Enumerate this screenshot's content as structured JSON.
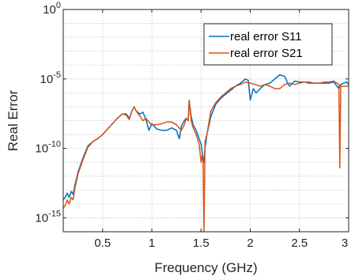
{
  "chart_data": {
    "type": "line",
    "title": "",
    "xlabel": "Frequency (GHz)",
    "ylabel": "Real Error",
    "xlim": [
      0.1,
      3.0
    ],
    "ylim": [
      1e-16,
      1
    ],
    "yscale": "log",
    "grid": true,
    "legend_position": "top-right",
    "x_ticks": [
      {
        "value": 0.5,
        "label": "0.5"
      },
      {
        "value": 1,
        "label": "1"
      },
      {
        "value": 1.5,
        "label": "1.5"
      },
      {
        "value": 2,
        "label": "2"
      },
      {
        "value": 2.5,
        "label": "2.5"
      },
      {
        "value": 3,
        "label": "3"
      }
    ],
    "y_ticks": [
      {
        "exp": -15,
        "base": "10",
        "power": "-15"
      },
      {
        "exp": -10,
        "base": "10",
        "power": "-10"
      },
      {
        "exp": -5,
        "base": "10",
        "power": "-5"
      },
      {
        "exp": 0,
        "base": "10",
        "power": "0"
      }
    ],
    "series": [
      {
        "name": "real error S11",
        "color": "#0072BD",
        "points": [
          [
            0.1,
            2e-14
          ],
          [
            0.12,
            3e-14
          ],
          [
            0.14,
            6e-14
          ],
          [
            0.16,
            3e-14
          ],
          [
            0.18,
            8e-14
          ],
          [
            0.2,
            5e-14
          ],
          [
            0.22,
            2.5e-13
          ],
          [
            0.25,
            2e-12
          ],
          [
            0.3,
            2e-11
          ],
          [
            0.35,
            1.5e-10
          ],
          [
            0.4,
            3e-10
          ],
          [
            0.45,
            5e-10
          ],
          [
            0.5,
            1e-09
          ],
          [
            0.55,
            2.5e-09
          ],
          [
            0.6,
            6e-09
          ],
          [
            0.65,
            1.5e-08
          ],
          [
            0.7,
            3e-08
          ],
          [
            0.74,
            3e-08
          ],
          [
            0.77,
            1.5e-08
          ],
          [
            0.8,
            5e-08
          ],
          [
            0.82,
            1e-07
          ],
          [
            0.84,
            5e-08
          ],
          [
            0.88,
            3e-08
          ],
          [
            0.91,
            4e-08
          ],
          [
            0.94,
            1.2e-08
          ],
          [
            0.97,
            2e-09
          ],
          [
            1.0,
            6e-09
          ],
          [
            1.05,
            2.5e-09
          ],
          [
            1.1,
            2e-09
          ],
          [
            1.15,
            2e-09
          ],
          [
            1.2,
            3e-09
          ],
          [
            1.25,
            2e-09
          ],
          [
            1.28,
            5e-10
          ],
          [
            1.3,
            4e-09
          ],
          [
            1.33,
            1e-08
          ],
          [
            1.35,
            1.5e-08
          ],
          [
            1.37,
            1e-08
          ],
          [
            1.38,
            3e-07
          ],
          [
            1.4,
            2e-08
          ],
          [
            1.42,
            5e-09
          ],
          [
            1.45,
            2e-09
          ],
          [
            1.48,
            5e-10
          ],
          [
            1.5,
            2e-10
          ],
          [
            1.52,
            2e-11
          ],
          [
            1.53,
            1e-11
          ],
          [
            1.54,
            1e-10
          ],
          [
            1.56,
            1e-09
          ],
          [
            1.6,
            2e-08
          ],
          [
            1.65,
            1.5e-07
          ],
          [
            1.7,
            4e-07
          ],
          [
            1.75,
            8e-07
          ],
          [
            1.8,
            1.5e-06
          ],
          [
            1.85,
            3e-06
          ],
          [
            1.9,
            5e-06
          ],
          [
            1.95,
            1e-05
          ],
          [
            1.98,
            8e-06
          ],
          [
            2.0,
            3e-07
          ],
          [
            2.03,
            2e-06
          ],
          [
            2.06,
            1e-06
          ],
          [
            2.1,
            2e-06
          ],
          [
            2.15,
            4e-06
          ],
          [
            2.2,
            5e-06
          ],
          [
            2.25,
            1e-05
          ],
          [
            2.3,
            2e-05
          ],
          [
            2.35,
            1.5e-05
          ],
          [
            2.38,
            5e-06
          ],
          [
            2.4,
            3e-06
          ],
          [
            2.45,
            7e-06
          ],
          [
            2.5,
            6e-06
          ],
          [
            2.55,
            6e-06
          ],
          [
            2.6,
            5e-06
          ],
          [
            2.65,
            5e-06
          ],
          [
            2.7,
            5e-06
          ],
          [
            2.75,
            5e-06
          ],
          [
            2.8,
            5e-06
          ],
          [
            2.85,
            6e-06
          ],
          [
            2.88,
            3e-06
          ],
          [
            2.9,
            2e-06
          ],
          [
            2.92,
            4e-06
          ],
          [
            2.95,
            5e-06
          ],
          [
            2.98,
            6e-06
          ],
          [
            3.0,
            4e-06
          ]
        ]
      },
      {
        "name": "real error S21",
        "color": "#D95319",
        "points": [
          [
            0.1,
            5e-15
          ],
          [
            0.12,
            8e-15
          ],
          [
            0.14,
            2e-14
          ],
          [
            0.16,
            1e-14
          ],
          [
            0.18,
            3e-14
          ],
          [
            0.2,
            2e-14
          ],
          [
            0.22,
            1.5e-13
          ],
          [
            0.25,
            1.5e-12
          ],
          [
            0.3,
            1.5e-11
          ],
          [
            0.35,
            1.2e-10
          ],
          [
            0.4,
            3e-10
          ],
          [
            0.45,
            5e-10
          ],
          [
            0.5,
            1e-09
          ],
          [
            0.55,
            2.5e-09
          ],
          [
            0.6,
            6e-09
          ],
          [
            0.65,
            1.5e-08
          ],
          [
            0.7,
            3e-08
          ],
          [
            0.74,
            2.5e-08
          ],
          [
            0.77,
            1.2e-08
          ],
          [
            0.8,
            5e-08
          ],
          [
            0.82,
            1e-07
          ],
          [
            0.84,
            5e-08
          ],
          [
            0.88,
            2e-08
          ],
          [
            0.91,
            1e-08
          ],
          [
            0.94,
            1.5e-08
          ],
          [
            0.97,
            8e-09
          ],
          [
            1.0,
            5e-09
          ],
          [
            1.05,
            5e-09
          ],
          [
            1.1,
            6e-09
          ],
          [
            1.15,
            8e-09
          ],
          [
            1.2,
            8e-09
          ],
          [
            1.25,
            5e-09
          ],
          [
            1.3,
            2e-09
          ],
          [
            1.33,
            5e-09
          ],
          [
            1.35,
            1.5e-08
          ],
          [
            1.37,
            1e-08
          ],
          [
            1.38,
            3e-07
          ],
          [
            1.4,
            1e-08
          ],
          [
            1.42,
            3e-09
          ],
          [
            1.45,
            1e-09
          ],
          [
            1.48,
            2e-10
          ],
          [
            1.5,
            1e-11
          ],
          [
            1.51,
            3e-11
          ],
          [
            1.52,
            1e-11
          ],
          [
            1.53,
            1e-16
          ],
          [
            1.54,
            3e-10
          ],
          [
            1.56,
            1e-09
          ],
          [
            1.6,
            5e-08
          ],
          [
            1.65,
            2e-07
          ],
          [
            1.7,
            5e-07
          ],
          [
            1.75,
            1e-06
          ],
          [
            1.8,
            2e-06
          ],
          [
            1.85,
            3e-06
          ],
          [
            1.9,
            4e-06
          ],
          [
            1.95,
            6e-06
          ],
          [
            2.0,
            5e-06
          ],
          [
            2.05,
            4e-06
          ],
          [
            2.1,
            3e-06
          ],
          [
            2.15,
            4e-06
          ],
          [
            2.2,
            3e-06
          ],
          [
            2.25,
            2e-06
          ],
          [
            2.3,
            2e-06
          ],
          [
            2.35,
            4e-06
          ],
          [
            2.4,
            5e-06
          ],
          [
            2.45,
            4e-06
          ],
          [
            2.5,
            5e-06
          ],
          [
            2.55,
            6e-06
          ],
          [
            2.6,
            6e-06
          ],
          [
            2.65,
            5e-06
          ],
          [
            2.7,
            5e-06
          ],
          [
            2.75,
            6e-06
          ],
          [
            2.8,
            6e-06
          ],
          [
            2.85,
            7e-06
          ],
          [
            2.88,
            5e-06
          ],
          [
            2.9,
            4e-06
          ],
          [
            2.91,
            4e-12
          ],
          [
            2.92,
            3e-06
          ],
          [
            2.95,
            3e-06
          ],
          [
            3.0,
            3e-06
          ]
        ]
      }
    ]
  }
}
